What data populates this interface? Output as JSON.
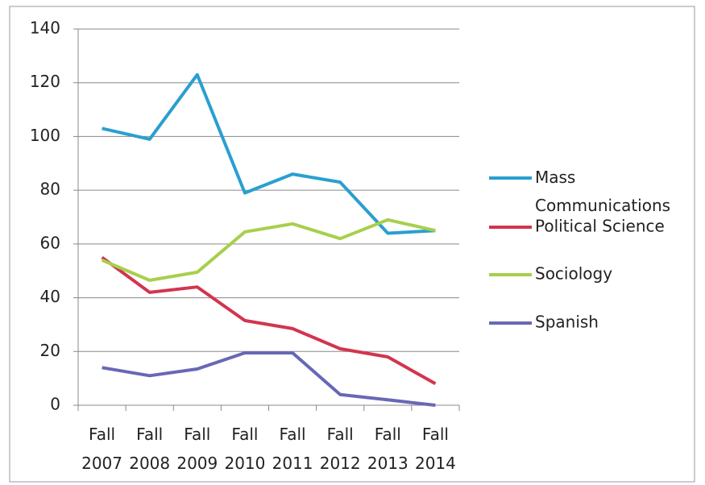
{
  "chart_data": {
    "type": "line",
    "categories": [
      "Fall 2007",
      "Fall 2008",
      "Fall 2009",
      "Fall 2010",
      "Fall 2011",
      "Fall 2012",
      "Fall 2013",
      "Fall 2014"
    ],
    "series": [
      {
        "name": "Mass Communications",
        "color": "#2a9fd0",
        "values": [
          103,
          99,
          123,
          79,
          86,
          83,
          64,
          65
        ]
      },
      {
        "name": "Political Science",
        "color": "#d2354f",
        "values": [
          55,
          42,
          44,
          31.5,
          28.5,
          21,
          18,
          8
        ]
      },
      {
        "name": "Sociology",
        "color": "#a8cf4c",
        "values": [
          54,
          46.5,
          49.5,
          64.5,
          67.5,
          62,
          69,
          65
        ]
      },
      {
        "name": "Spanish",
        "color": "#6868b6",
        "values": [
          14,
          11,
          13.5,
          19.5,
          19.5,
          4,
          2,
          0
        ]
      }
    ],
    "ylim": [
      0,
      140
    ],
    "yticks": [
      0,
      20,
      40,
      60,
      80,
      100,
      120,
      140
    ],
    "grid": true,
    "legend": "right"
  }
}
